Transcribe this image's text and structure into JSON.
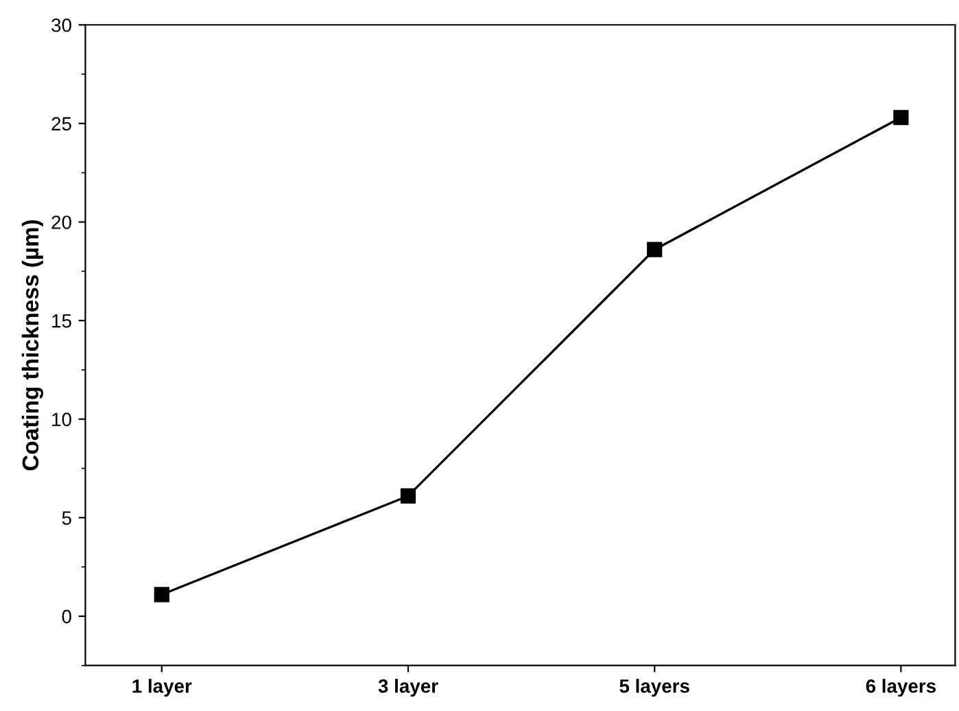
{
  "chart_data": {
    "type": "line",
    "ylabel": "Coating thickness (µm)",
    "categories": [
      "1 layer",
      "3 layer",
      "5 layers",
      "6 layers"
    ],
    "series": [
      {
        "color": "#000000",
        "values": [
          1.1,
          6.1,
          18.6,
          25.3
        ]
      }
    ],
    "ylim": [
      -2.5,
      30
    ],
    "yticks": [
      0,
      5,
      10,
      15,
      20,
      25,
      30
    ],
    "marker": "square",
    "line_style": "solid",
    "grid": false,
    "legend": false
  }
}
